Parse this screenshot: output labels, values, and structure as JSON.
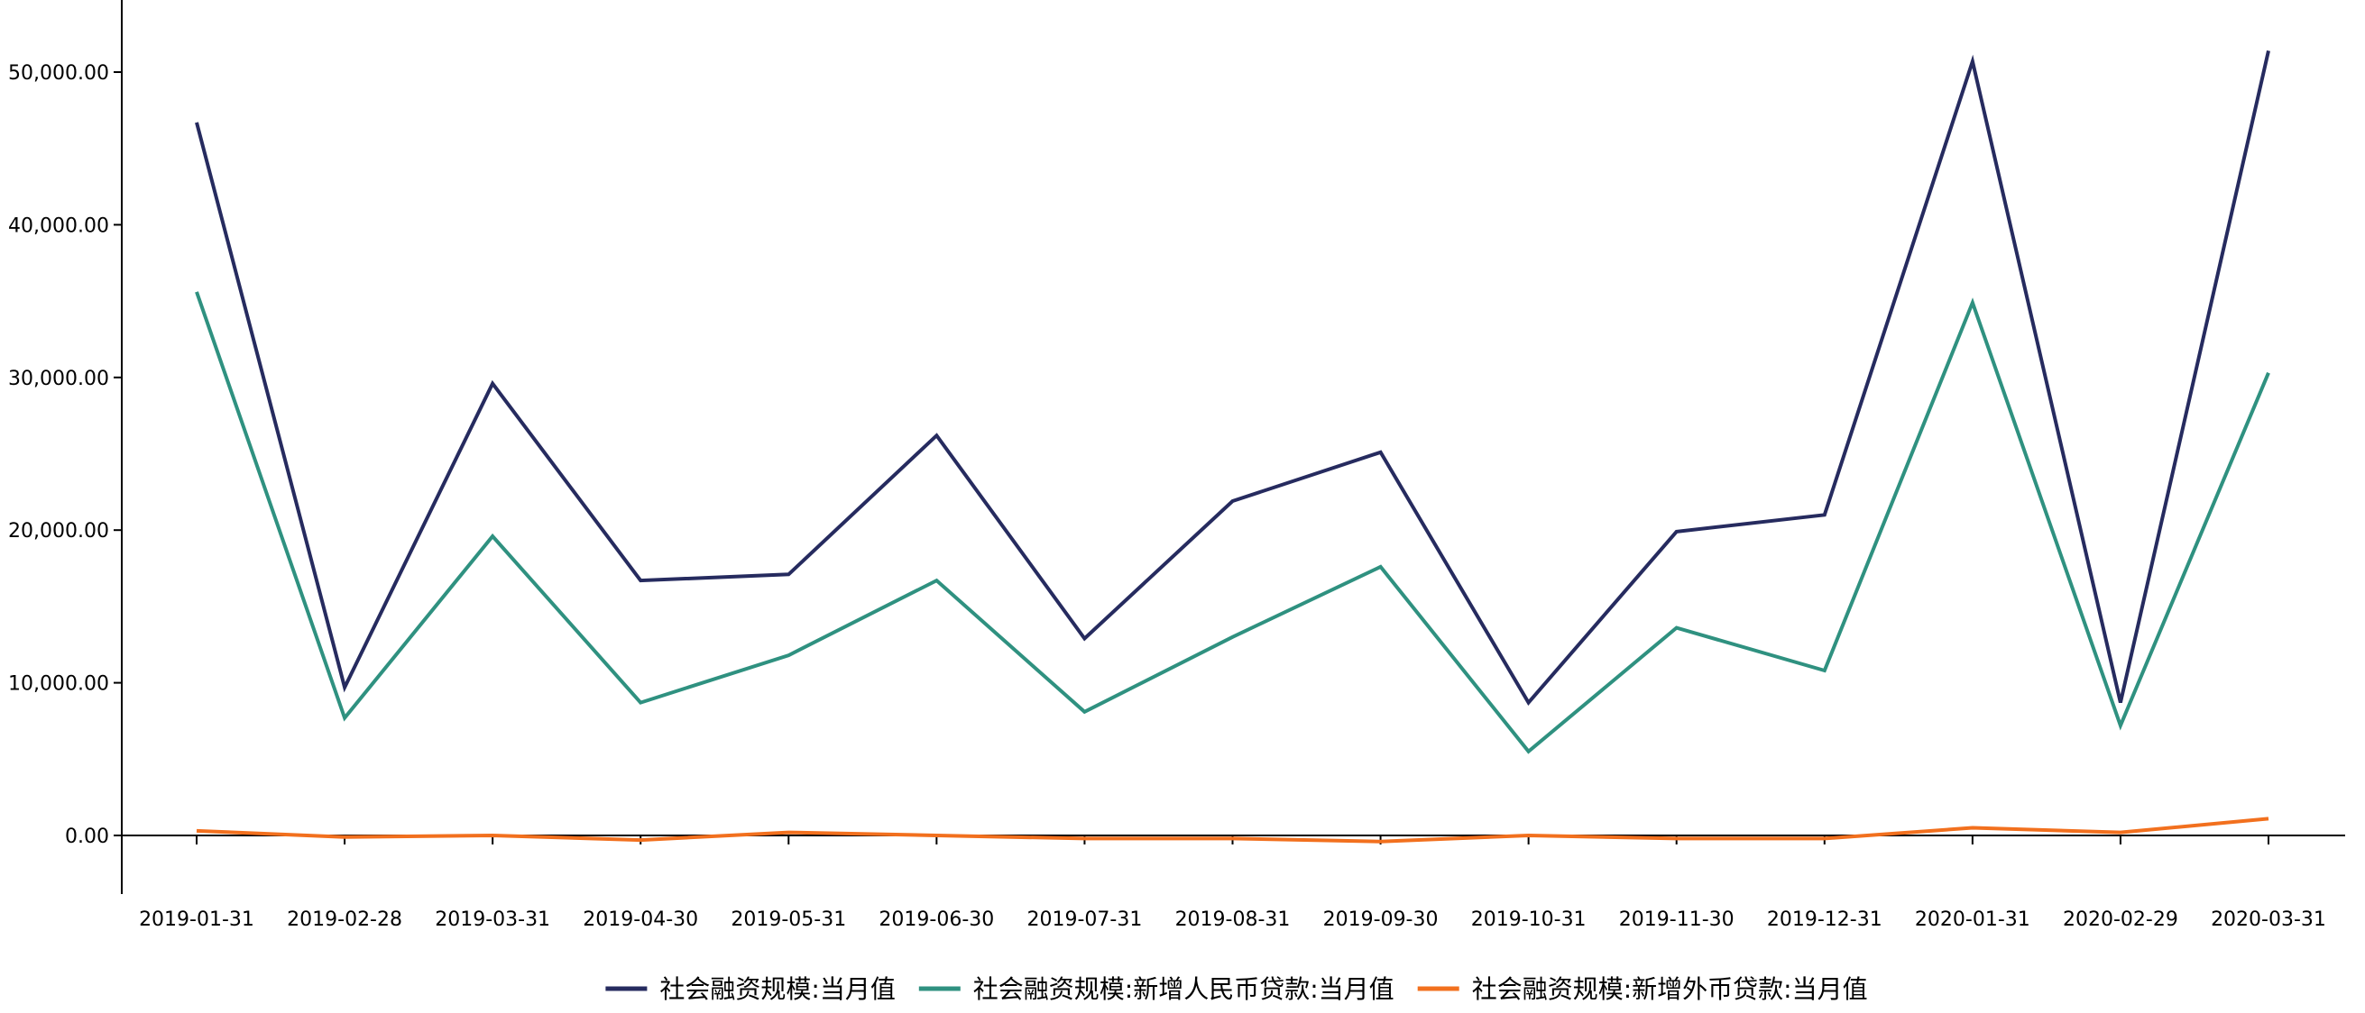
{
  "chart_data": {
    "type": "line",
    "title": "",
    "xlabel": "",
    "ylabel": "",
    "ylim": [
      -3800,
      55000
    ],
    "yticks": [
      0,
      10000,
      20000,
      30000,
      40000,
      50000
    ],
    "ytick_labels": [
      "0.00",
      "10,000.00",
      "20,000.00",
      "30,000.00",
      "40,000.00",
      "50,000.00"
    ],
    "categories": [
      "2019-01-31",
      "2019-02-28",
      "2019-03-31",
      "2019-04-30",
      "2019-05-31",
      "2019-06-30",
      "2019-07-31",
      "2019-08-31",
      "2019-09-30",
      "2019-10-31",
      "2019-11-30",
      "2019-12-31",
      "2020-01-31",
      "2020-02-29",
      "2020-03-31"
    ],
    "grid": false,
    "legend_position": "bottom",
    "series": [
      {
        "name": "社会融资规模:当月值",
        "color": "#262b5f",
        "values": [
          46700,
          9700,
          29600,
          16700,
          17100,
          26200,
          12900,
          21900,
          25100,
          8700,
          19900,
          21000,
          50700,
          8700,
          51400
        ]
      },
      {
        "name": "社会融资规模:新增人民币贷款:当月值",
        "color": "#2f9180",
        "values": [
          35600,
          7700,
          19600,
          8700,
          11800,
          16700,
          8100,
          13000,
          17600,
          5500,
          13600,
          10800,
          34900,
          7200,
          30300
        ]
      },
      {
        "name": "社会融资规模:新增外币贷款:当月值",
        "color": "#f2701e",
        "values": [
          300,
          -100,
          0,
          -300,
          200,
          0,
          -200,
          -200,
          -400,
          0,
          -200,
          -200,
          500,
          200,
          1100
        ]
      }
    ]
  }
}
